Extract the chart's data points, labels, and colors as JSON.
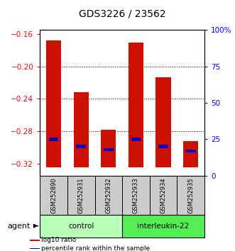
{
  "title": "GDS3226 / 23562",
  "samples": [
    "GSM252890",
    "GSM252931",
    "GSM252932",
    "GSM252933",
    "GSM252934",
    "GSM252935"
  ],
  "log10_top": [
    -0.168,
    -0.232,
    -0.278,
    -0.17,
    -0.213,
    -0.292
  ],
  "log10_bottom": [
    -0.325,
    -0.325,
    -0.325,
    -0.325,
    -0.325,
    -0.325
  ],
  "percentile_vals": [
    0.25,
    0.2,
    0.18,
    0.25,
    0.2,
    0.17
  ],
  "ylim": [
    -0.335,
    -0.155
  ],
  "yticks": [
    -0.32,
    -0.28,
    -0.24,
    -0.2,
    -0.16
  ],
  "right_yticks": [
    0,
    25,
    50,
    75,
    100
  ],
  "groups": [
    {
      "label": "control",
      "indices": [
        0,
        1,
        2
      ],
      "color": "#b8ffb8"
    },
    {
      "label": "interleukin-22",
      "indices": [
        3,
        4,
        5
      ],
      "color": "#55ee55"
    }
  ],
  "agent_label": "agent",
  "bar_color": "#cc1100",
  "blue_color": "#0000cc",
  "bar_width": 0.55,
  "background_plot": "#ffffff",
  "background_label": "#cccccc",
  "legend_items": [
    {
      "color": "#cc1100",
      "label": "log10 ratio"
    },
    {
      "color": "#0000cc",
      "label": "percentile rank within the sample"
    }
  ]
}
